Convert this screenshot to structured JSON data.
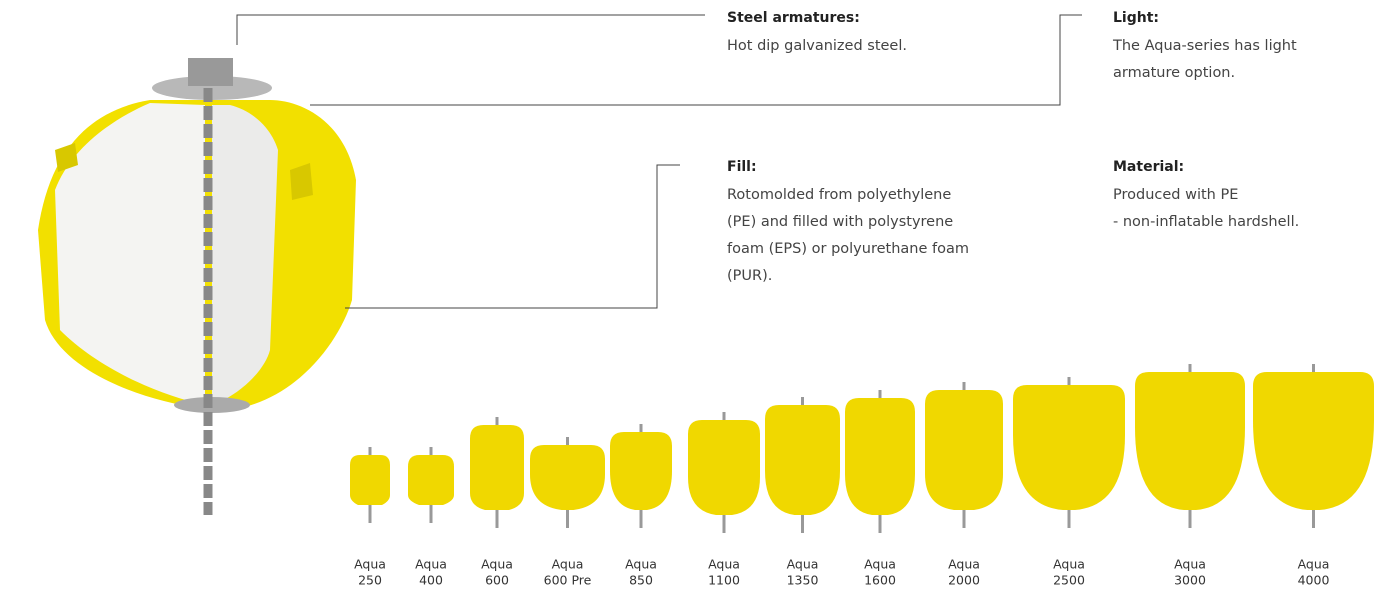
{
  "annotations": [
    {
      "title": "Steel armatures:",
      "lines": [
        "Hot dip galvanized steel."
      ]
    },
    {
      "title": "Light:",
      "lines": [
        "The Aqua-series has light",
        "armature option."
      ]
    },
    {
      "title": "Fill:",
      "lines": [
        "Rotomolded from polyethylene",
        "(PE) and filled with polystyrene",
        "foam (EPS) or polyurethane foam",
        "(PUR)."
      ]
    },
    {
      "title": "Material:",
      "lines": [
        "Produced with PE",
        "- non-inflatable hardshell."
      ]
    }
  ],
  "products": [
    {
      "name": "Aqua",
      "model": "250"
    },
    {
      "name": "Aqua",
      "model": "400"
    },
    {
      "name": "Aqua",
      "model": "600"
    },
    {
      "name": "Aqua",
      "model": "600 Pre"
    },
    {
      "name": "Aqua",
      "model": "850"
    },
    {
      "name": "Aqua",
      "model": "1100"
    },
    {
      "name": "Aqua",
      "model": "1350"
    },
    {
      "name": "Aqua",
      "model": "1600"
    },
    {
      "name": "Aqua",
      "model": "2000"
    },
    {
      "name": "Aqua",
      "model": "2500"
    },
    {
      "name": "Aqua",
      "model": "3000"
    },
    {
      "name": "Aqua",
      "model": "4000"
    }
  ]
}
